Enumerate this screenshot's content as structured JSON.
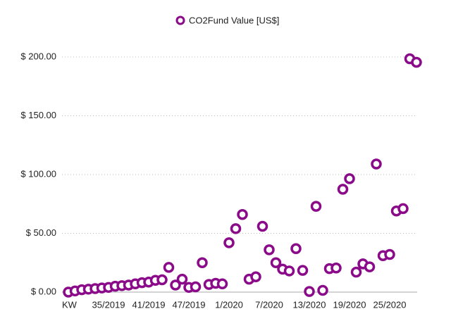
{
  "chart_data": {
    "type": "line",
    "categories": [
      "KW",
      null,
      null,
      null,
      null,
      null,
      "35/2019",
      null,
      null,
      null,
      null,
      null,
      "41/2019",
      null,
      null,
      null,
      null,
      null,
      "47/2019",
      null,
      null,
      null,
      null,
      null,
      "1/2020",
      null,
      null,
      null,
      null,
      null,
      "7/2020",
      null,
      null,
      null,
      null,
      null,
      "13/2020",
      null,
      null,
      null,
      null,
      null,
      "19/2020",
      null,
      null,
      null,
      null,
      null,
      "25/2020",
      null,
      null,
      null,
      null
    ],
    "series": [
      {
        "name": "CO2Fund Value [US$]",
        "color": "#8a0a8a",
        "values": [
          0,
          1,
          2,
          2.5,
          3,
          3.5,
          4,
          5,
          5.5,
          6,
          7,
          8,
          8.5,
          10,
          10.5,
          21,
          6,
          11,
          4,
          4.5,
          25,
          6.5,
          7.5,
          7,
          42,
          54,
          66,
          11,
          13,
          56,
          36,
          25,
          19.5,
          18,
          37,
          18.5,
          0.5,
          73,
          1.5,
          20,
          20.5,
          87.5,
          96.5,
          17,
          24,
          21.5,
          109,
          31,
          32,
          69,
          71,
          198.5,
          195.5
        ]
      }
    ],
    "ylim": [
      0,
      200
    ],
    "yticks": [
      {
        "value": 0,
        "label": "$ 0.00"
      },
      {
        "value": 50,
        "label": "$ 50.00"
      },
      {
        "value": 100,
        "label": "$ 100.00"
      },
      {
        "value": 150,
        "label": "$ 150.00"
      },
      {
        "value": 200,
        "label": "$ 200.00"
      }
    ],
    "grid": true
  }
}
